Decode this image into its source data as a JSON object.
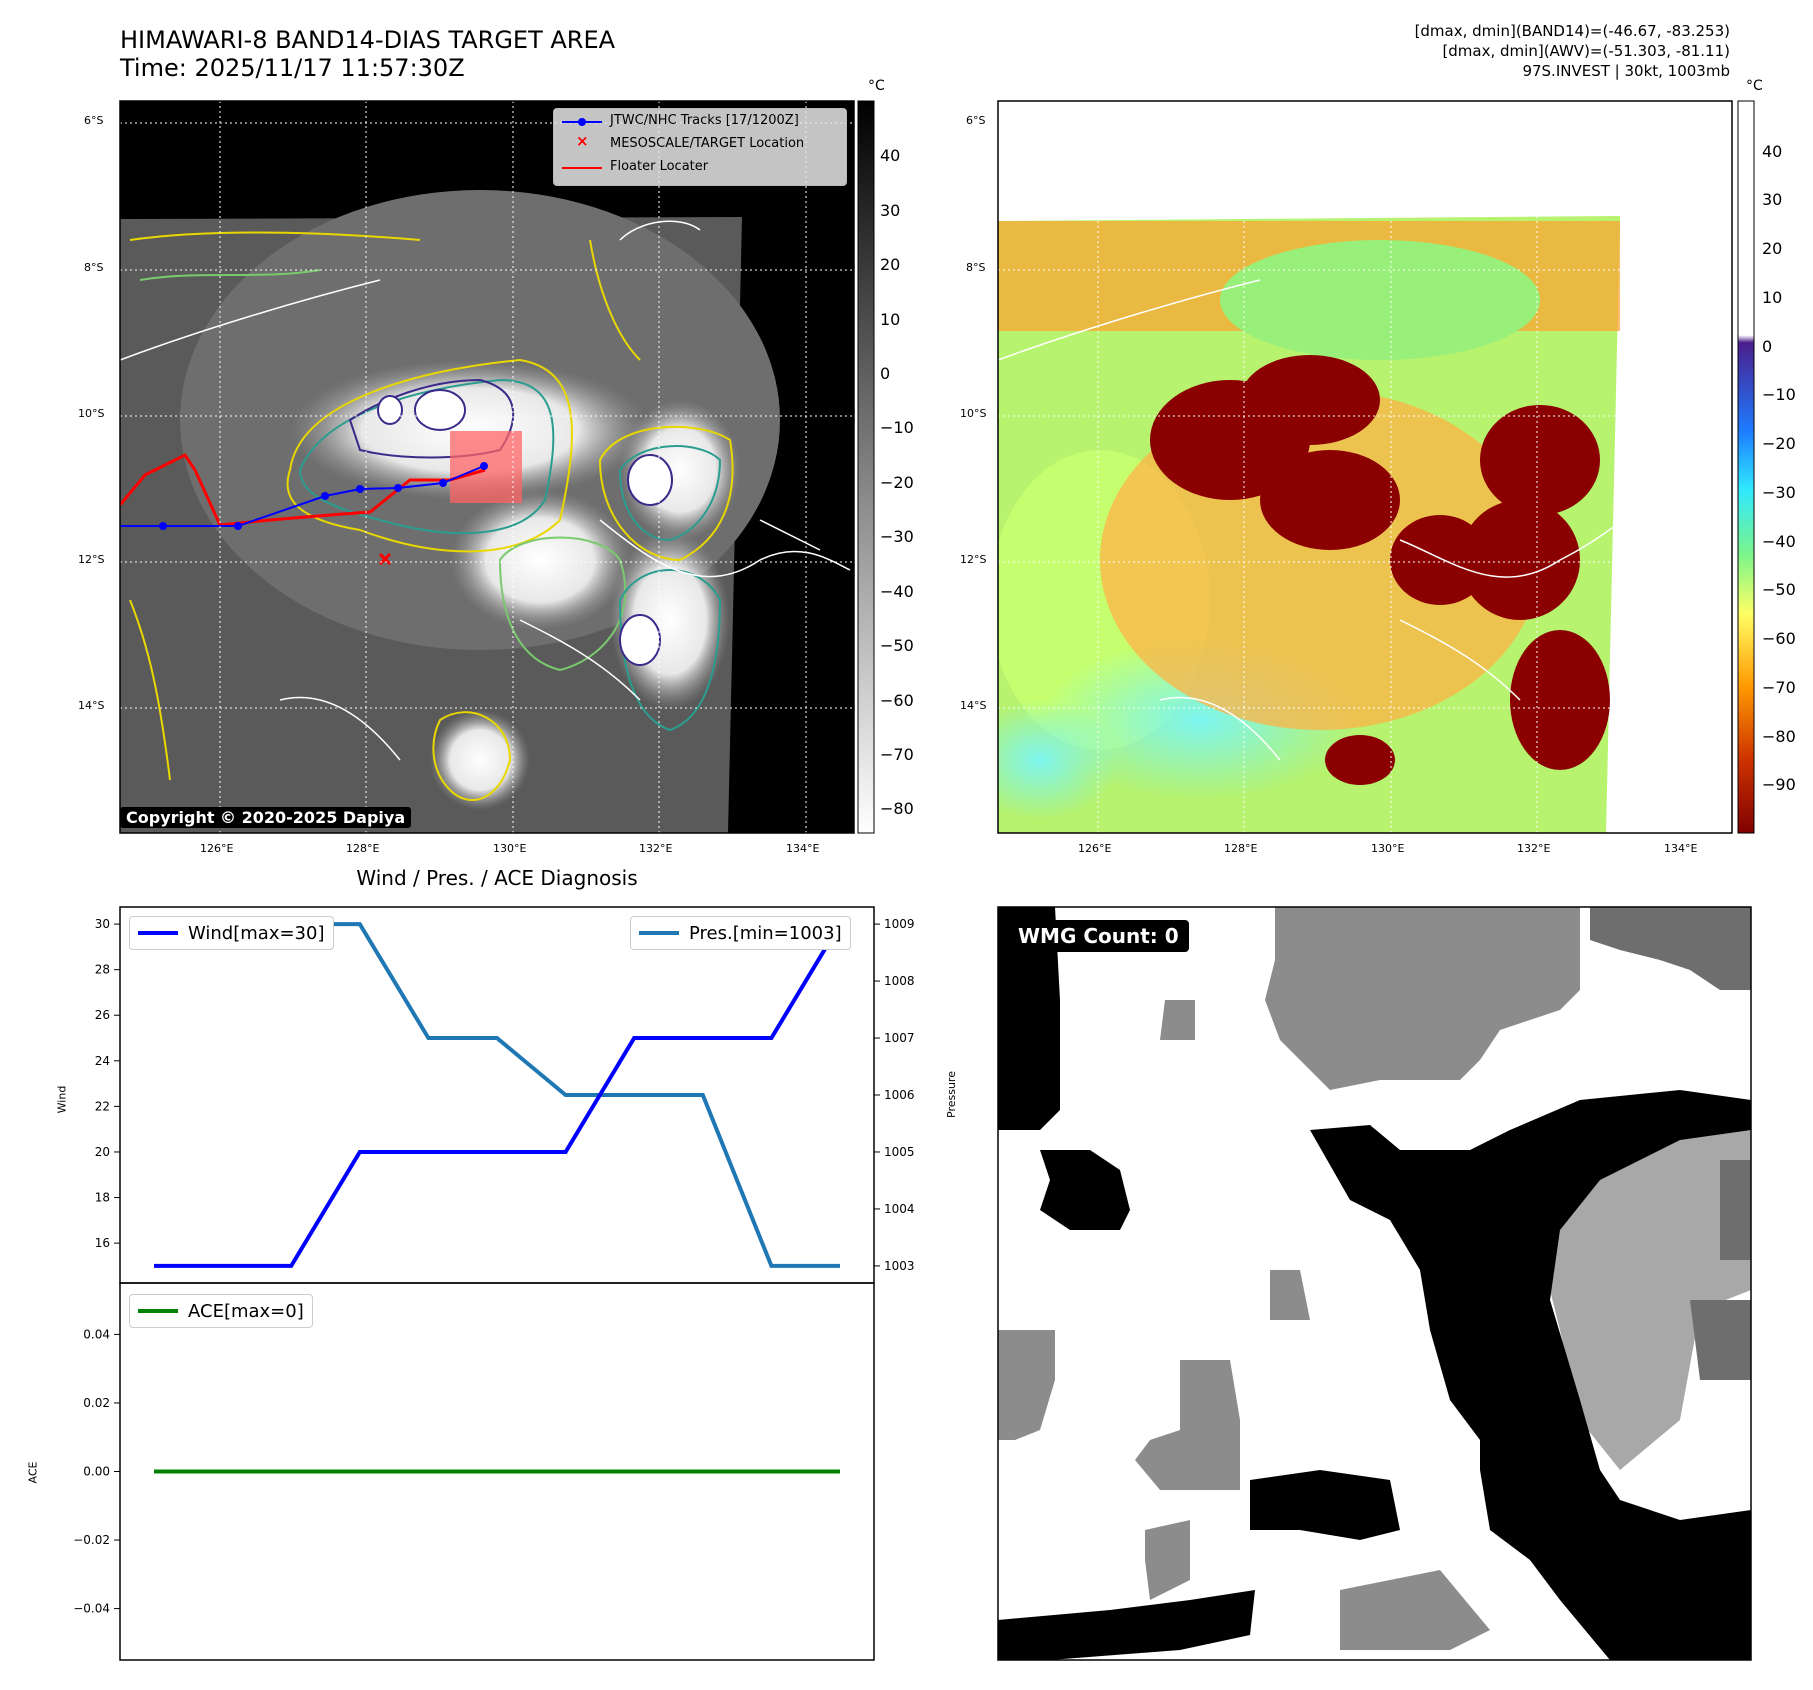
{
  "header": {
    "title_line1": "HIMAWARI-8 BAND14-DIAS TARGET AREA",
    "title_line2": "Time: 2025/11/17 11:57:30Z",
    "info_line1": "[dmax, dmin](BAND14)=(-46.67, -83.253)",
    "info_line2": "[dmax, dmin](AWV)=(-51.303, -81.11)",
    "info_line3": "97S.INVEST | 30kt, 1003mb"
  },
  "map_panels": {
    "lat_labels": [
      "6°S",
      "8°S",
      "10°S",
      "12°S",
      "14°S"
    ],
    "lon_labels": [
      "126°E",
      "128°E",
      "130°E",
      "132°E",
      "134°E"
    ],
    "colorbar_unit": "°C",
    "band14_colorbar_ticks": [
      "40",
      "30",
      "20",
      "10",
      "0",
      "−10",
      "−20",
      "−30",
      "−40",
      "−50",
      "−60",
      "−70",
      "−80"
    ],
    "awv_colorbar_ticks": [
      "40",
      "30",
      "20",
      "10",
      "0",
      "−10",
      "−20",
      "−30",
      "−40",
      "−50",
      "−60",
      "−70",
      "−80",
      "−90"
    ],
    "copyright": "Copyright © 2020-2025 Dapiya",
    "legend": {
      "tracks": "JTWC/NHC Tracks [17/1200Z]",
      "target": "MESOSCALE/TARGET Location",
      "floater": "Floater Locater"
    },
    "colors": {
      "track": "#0000ff",
      "floater": "#ff0000",
      "target": "#ff0000",
      "coast": "#ffffff"
    }
  },
  "diagnosis": {
    "title": "Wind / Pres. / ACE Diagnosis",
    "wind_axis_label": "Wind",
    "pressure_axis_label": "Pressure",
    "ace_axis_label": "ACE",
    "wind_legend": "Wind[max=30]",
    "pressure_legend": "Pres.[min=1003]",
    "ace_legend": "ACE[max=0]",
    "wind_ticks": [
      "30",
      "28",
      "26",
      "24",
      "22",
      "20",
      "18",
      "16"
    ],
    "pressure_ticks": [
      "1009",
      "1008",
      "1007",
      "1006",
      "1005",
      "1004",
      "1003"
    ],
    "ace_ticks": [
      "0.04",
      "0.02",
      "0.00",
      "−0.02",
      "−0.04"
    ]
  },
  "wmg": {
    "label": "WMG Count: 0"
  },
  "chart_data": [
    {
      "type": "line",
      "title": "Wind / Pres. / ACE Diagnosis",
      "ylabel": "Wind",
      "ylim": [
        14.25,
        30.75
      ],
      "x": [
        0,
        1,
        2,
        3,
        4,
        5,
        6,
        7,
        8,
        9,
        10
      ],
      "series": [
        {
          "name": "Wind[max=30]",
          "color": "#0000ff",
          "values": [
            15,
            15,
            15,
            20,
            20,
            20,
            20,
            25,
            25,
            25,
            30
          ]
        }
      ]
    },
    {
      "type": "line",
      "ylabel": "Pressure",
      "ylim": [
        1002.7,
        1009.3
      ],
      "x": [
        0,
        1,
        2,
        3,
        4,
        5,
        6,
        7,
        8,
        9,
        10
      ],
      "series": [
        {
          "name": "Pres.[min=1003]",
          "color": "#1f77b4",
          "values": [
            1009,
            1009,
            1009,
            1009,
            1007,
            1007,
            1006,
            1006,
            1006,
            1003,
            1003
          ]
        }
      ]
    },
    {
      "type": "line",
      "ylabel": "ACE",
      "ylim": [
        -0.055,
        0.055
      ],
      "x": [
        0,
        1,
        2,
        3,
        4,
        5,
        6,
        7,
        8,
        9,
        10
      ],
      "series": [
        {
          "name": "ACE[max=0]",
          "color": "#008000",
          "values": [
            0,
            0,
            0,
            0,
            0,
            0,
            0,
            0,
            0,
            0,
            0
          ]
        }
      ]
    }
  ]
}
